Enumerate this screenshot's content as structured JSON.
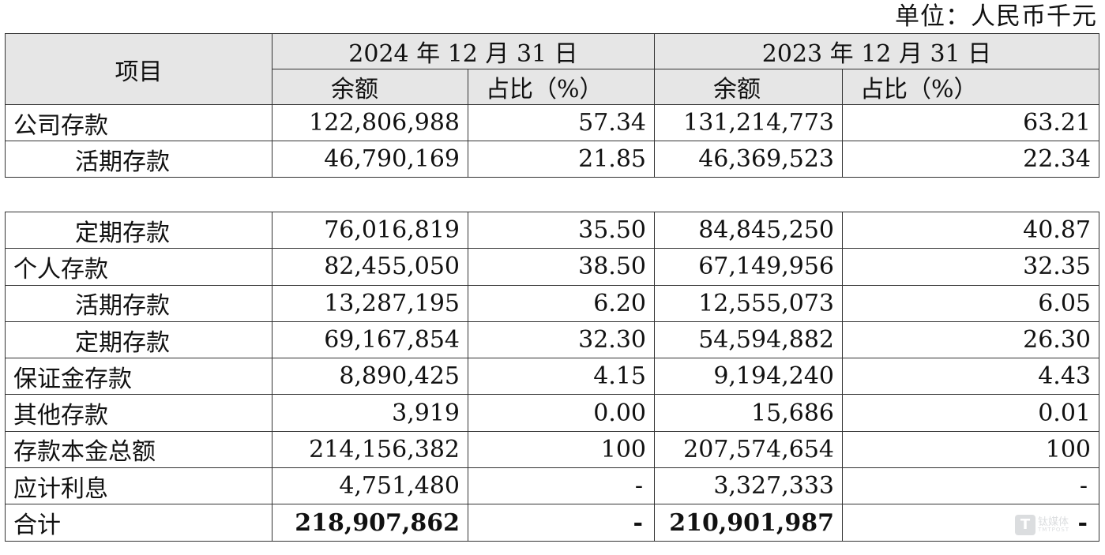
{
  "unit": "单位：人民币千元",
  "header": {
    "item": "项目",
    "period_2024": "2024 年 12 月 31 日",
    "period_2023": "2023 年 12 月 31 日",
    "balance": "余额",
    "share": "占比（%）"
  },
  "rows_top": [
    {
      "label": "公司存款",
      "bal_2024": "122,806,988",
      "pct_2024": "57.34",
      "bal_2023": "131,214,773",
      "pct_2023": "63.21"
    },
    {
      "label": "活期存款",
      "bal_2024": "46,790,169",
      "pct_2024": "21.85",
      "bal_2023": "46,369,523",
      "pct_2023": "22.34"
    }
  ],
  "rows_bottom": [
    {
      "label": "定期存款",
      "bal_2024": "76,016,819",
      "pct_2024": "35.50",
      "bal_2023": "84,845,250",
      "pct_2023": "40.87"
    },
    {
      "label": "个人存款",
      "bal_2024": "82,455,050",
      "pct_2024": "38.50",
      "bal_2023": "67,149,956",
      "pct_2023": "32.35"
    },
    {
      "label": "活期存款",
      "bal_2024": "13,287,195",
      "pct_2024": "6.20",
      "bal_2023": "12,555,073",
      "pct_2023": "6.05"
    },
    {
      "label": "定期存款",
      "bal_2024": "69,167,854",
      "pct_2024": "32.30",
      "bal_2023": "54,594,882",
      "pct_2023": "26.30"
    },
    {
      "label": "保证金存款",
      "bal_2024": "8,890,425",
      "pct_2024": "4.15",
      "bal_2023": "9,194,240",
      "pct_2023": "4.43"
    },
    {
      "label": "其他存款",
      "bal_2024": "3,919",
      "pct_2024": "0.00",
      "bal_2023": "15,686",
      "pct_2023": "0.01"
    },
    {
      "label": "存款本金总额",
      "bal_2024": "214,156,382",
      "pct_2024": "100",
      "bal_2023": "207,574,654",
      "pct_2023": "100"
    },
    {
      "label": "应计利息",
      "bal_2024": "4,751,480",
      "pct_2024": "-",
      "bal_2023": "3,327,333",
      "pct_2023": "-"
    },
    {
      "label": "合计",
      "bal_2024": "218,907,862",
      "pct_2024": "-",
      "bal_2023": "210,901,987",
      "pct_2023": "-"
    }
  ],
  "watermark": {
    "icon": "T",
    "name": "钛媒体",
    "sub": "TMTPOST"
  },
  "colors": {
    "header_bg": "#e6e6e6",
    "border": "#333333"
  }
}
